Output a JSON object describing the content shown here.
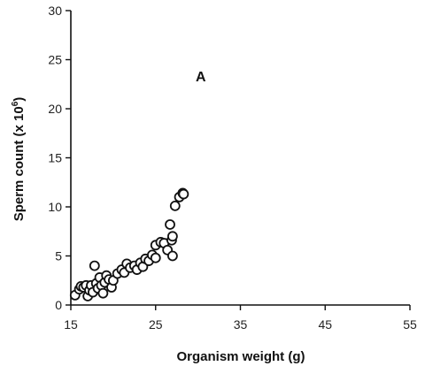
{
  "chart_data": {
    "type": "scatter",
    "annotation": "A",
    "xlabel": "Organism weight (g)",
    "ylabel_main": "Sperm count (x 10",
    "ylabel_sup": "6",
    "ylabel_end": ")",
    "xlim": [
      15,
      55
    ],
    "ylim": [
      0,
      30
    ],
    "xticks": [
      15,
      25,
      35,
      45,
      55
    ],
    "yticks": [
      0,
      5,
      10,
      15,
      20,
      25,
      30
    ],
    "grid": false,
    "marker": "open-circle",
    "points": [
      [
        15.5,
        1.0
      ],
      [
        16.0,
        1.6
      ],
      [
        16.2,
        1.9
      ],
      [
        16.5,
        1.8
      ],
      [
        16.8,
        2.0
      ],
      [
        17.0,
        0.9
      ],
      [
        17.2,
        1.5
      ],
      [
        17.4,
        2.0
      ],
      [
        17.6,
        1.3
      ],
      [
        17.8,
        4.0
      ],
      [
        18.0,
        2.2
      ],
      [
        18.2,
        1.7
      ],
      [
        18.4,
        2.8
      ],
      [
        18.6,
        2.0
      ],
      [
        18.8,
        1.2
      ],
      [
        19.0,
        2.3
      ],
      [
        19.2,
        3.0
      ],
      [
        19.5,
        2.6
      ],
      [
        19.8,
        1.8
      ],
      [
        20.0,
        2.5
      ],
      [
        20.5,
        3.2
      ],
      [
        21.0,
        3.6
      ],
      [
        21.3,
        3.3
      ],
      [
        21.6,
        4.2
      ],
      [
        22.0,
        3.8
      ],
      [
        22.5,
        4.0
      ],
      [
        22.8,
        3.6
      ],
      [
        23.2,
        4.3
      ],
      [
        23.5,
        3.9
      ],
      [
        23.8,
        4.7
      ],
      [
        24.2,
        4.5
      ],
      [
        24.6,
        5.1
      ],
      [
        25.0,
        4.8
      ],
      [
        25.0,
        6.1
      ],
      [
        25.6,
        6.4
      ],
      [
        26.0,
        6.3
      ],
      [
        26.4,
        5.6
      ],
      [
        26.7,
        8.2
      ],
      [
        26.9,
        6.6
      ],
      [
        27.0,
        7.0
      ],
      [
        27.0,
        5.0
      ],
      [
        27.3,
        10.1
      ],
      [
        27.8,
        11.0
      ],
      [
        28.2,
        11.4
      ],
      [
        28.3,
        11.3
      ]
    ]
  }
}
